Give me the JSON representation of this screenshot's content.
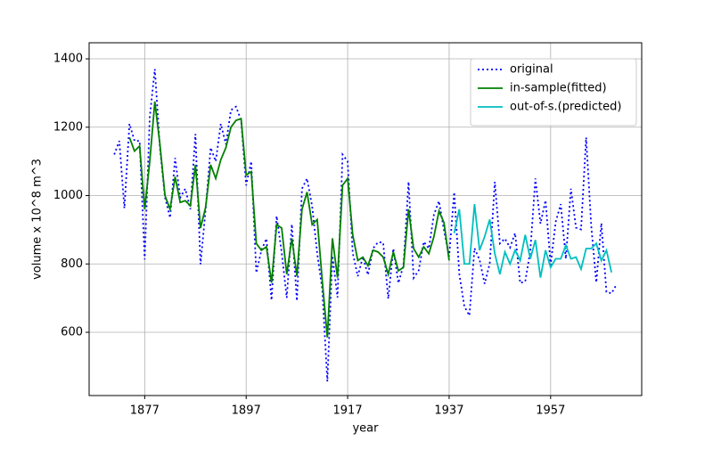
{
  "chart_data": {
    "type": "line",
    "xlabel": "year",
    "ylabel": "volume x 10^8 m^3",
    "xlim": [
      1866.05,
      1974.95
    ],
    "xticks": [
      1877,
      1897,
      1917,
      1937,
      1957
    ],
    "ylim": [
      415,
      1447
    ],
    "yticks": [
      600,
      800,
      1000,
      1200,
      1400
    ],
    "grid": true,
    "legend": "upper right",
    "series": [
      {
        "name": "original",
        "color": "#0000ff",
        "style": "dotted",
        "x": [
          1871,
          1872,
          1873,
          1874,
          1875,
          1876,
          1877,
          1878,
          1879,
          1880,
          1881,
          1882,
          1883,
          1884,
          1885,
          1886,
          1887,
          1888,
          1889,
          1890,
          1891,
          1892,
          1893,
          1894,
          1895,
          1896,
          1897,
          1898,
          1899,
          1900,
          1901,
          1902,
          1903,
          1904,
          1905,
          1906,
          1907,
          1908,
          1909,
          1910,
          1911,
          1912,
          1913,
          1914,
          1915,
          1916,
          1917,
          1918,
          1919,
          1920,
          1921,
          1922,
          1923,
          1924,
          1925,
          1926,
          1927,
          1928,
          1929,
          1930,
          1931,
          1932,
          1933,
          1934,
          1935,
          1936,
          1937,
          1938,
          1939,
          1940,
          1941,
          1942,
          1943,
          1944,
          1945,
          1946,
          1947,
          1948,
          1949,
          1950,
          1951,
          1952,
          1953,
          1954,
          1955,
          1956,
          1957,
          1958,
          1959,
          1960,
          1961,
          1962,
          1963,
          1964,
          1965,
          1966,
          1967,
          1968,
          1969,
          1970
        ],
        "values": [
          1120,
          1160,
          963,
          1210,
          1160,
          1160,
          813,
          1230,
          1370,
          1140,
          995,
          935,
          1110,
          994,
          1020,
          960,
          1180,
          799,
          958,
          1140,
          1100,
          1210,
          1150,
          1250,
          1260,
          1220,
          1030,
          1100,
          774,
          840,
          874,
          694,
          940,
          833,
          701,
          916,
          692,
          1020,
          1050,
          969,
          831,
          726,
          456,
          824,
          702,
          1120,
          1100,
          832,
          764,
          821,
          768,
          845,
          864,
          862,
          698,
          845,
          744,
          796,
          1040,
          759,
          781,
          865,
          845,
          944,
          984,
          897,
          822,
          1010,
          771,
          676,
          649,
          846,
          812,
          742,
          801,
          1040,
          860,
          874,
          848,
          890,
          744,
          749,
          838,
          1050,
          918,
          986,
          797,
          923,
          975,
          815,
          1020,
          906,
          901,
          1170,
          912,
          746,
          919,
          718,
          714,
          740
        ]
      },
      {
        "name": "in-sample(fitted)",
        "color": "#008000",
        "style": "solid",
        "x": [
          1874,
          1875,
          1876,
          1877,
          1878,
          1879,
          1880,
          1881,
          1882,
          1883,
          1884,
          1885,
          1886,
          1887,
          1888,
          1889,
          1890,
          1891,
          1892,
          1893,
          1894,
          1895,
          1896,
          1897,
          1898,
          1899,
          1900,
          1901,
          1902,
          1903,
          1904,
          1905,
          1906,
          1907,
          1908,
          1909,
          1910,
          1911,
          1912,
          1913,
          1914,
          1915,
          1916,
          1917,
          1918,
          1919,
          1920,
          1921,
          1922,
          1923,
          1924,
          1925,
          1926,
          1927,
          1928,
          1929,
          1930,
          1931,
          1932,
          1933,
          1934,
          1935,
          1936,
          1937
        ],
        "values": [
          1170,
          1130,
          1145,
          960,
          1100,
          1275,
          1150,
          1000,
          960,
          1055,
          980,
          985,
          970,
          1090,
          905,
          965,
          1090,
          1050,
          1105,
          1140,
          1200,
          1220,
          1225,
          1060,
          1070,
          860,
          840,
          850,
          745,
          915,
          905,
          770,
          875,
          765,
          960,
          1010,
          915,
          930,
          750,
          585,
          875,
          760,
          1030,
          1050,
          885,
          810,
          820,
          795,
          840,
          835,
          820,
          770,
          835,
          780,
          790,
          960,
          845,
          820,
          850,
          830,
          880,
          955,
          920,
          810
        ]
      },
      {
        "name": "out-of-s.(predicted)",
        "color": "#00bfbf",
        "style": "solid",
        "x": [
          1938,
          1939,
          1940,
          1941,
          1942,
          1943,
          1944,
          1945,
          1946,
          1947,
          1948,
          1949,
          1950,
          1951,
          1952,
          1953,
          1954,
          1955,
          1956,
          1957,
          1958,
          1959,
          1960,
          1961,
          1962,
          1963,
          1964,
          1965,
          1966,
          1967,
          1968,
          1969
        ],
        "values": [
          890,
          960,
          800,
          800,
          975,
          840,
          880,
          930,
          830,
          770,
          835,
          800,
          840,
          810,
          885,
          815,
          870,
          760,
          840,
          790,
          815,
          815,
          855,
          815,
          820,
          785,
          845,
          845,
          860,
          810,
          840,
          775
        ]
      }
    ]
  }
}
